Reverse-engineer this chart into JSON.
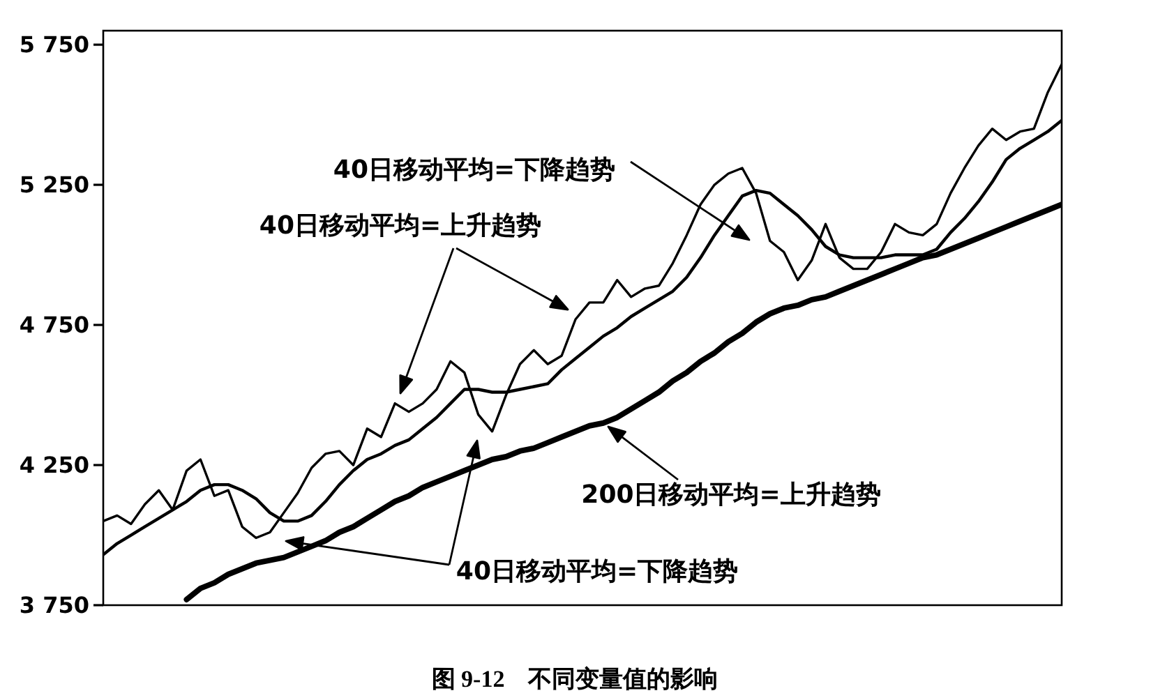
{
  "chart_data": {
    "type": "line",
    "annotations": [
      "40日移动平均=下降趋势",
      "40日移动平均=上升趋势",
      "200日移动平均=上升趋势",
      "40日移动平均=下降趋势",
      "图 9-12　不同变量值的影响"
    ],
    "categories": [
      null,
      null,
      null,
      null,
      null,
      null,
      null,
      null,
      null,
      null,
      null,
      null,
      null,
      null,
      null,
      null,
      null,
      null,
      null,
      null,
      null,
      null,
      null,
      null,
      null,
      null,
      null,
      null,
      null,
      null,
      null,
      null,
      null,
      null,
      null,
      null,
      null,
      null,
      null,
      null,
      null,
      null,
      null,
      null,
      null,
      null,
      null,
      null,
      null,
      null,
      null,
      null,
      null,
      null,
      null,
      null,
      null,
      null,
      null,
      null,
      null,
      null,
      null,
      null,
      null,
      null,
      null,
      null,
      null,
      null
    ],
    "series": [
      {
        "color": "#000000",
        "values": [
          4050,
          4070,
          4040,
          4110,
          4160,
          4090,
          4230,
          4270,
          4140,
          4160,
          4030,
          3990,
          4010,
          4080,
          4150,
          4240,
          4290,
          4300,
          4250,
          4380,
          4350,
          4470,
          4440,
          4470,
          4520,
          4620,
          4580,
          4430,
          4370,
          4500,
          4610,
          4660,
          4610,
          4640,
          4770,
          4830,
          4830,
          4910,
          4850,
          4880,
          4890,
          4970,
          5070,
          5180,
          5250,
          5290,
          5310,
          5220,
          5050,
          5010,
          4910,
          4980,
          5110,
          4990,
          4950,
          4950,
          5010,
          5110,
          5080,
          5070,
          5110,
          5220,
          5310,
          5390,
          5450,
          5410,
          5440,
          5450,
          5580,
          5680
        ]
      },
      {
        "color": "#000000",
        "values": [
          3930,
          3970,
          4000,
          4030,
          4060,
          4090,
          4120,
          4160,
          4180,
          4180,
          4160,
          4130,
          4080,
          4050,
          4050,
          4070,
          4120,
          4180,
          4230,
          4270,
          4290,
          4320,
          4340,
          4380,
          4420,
          4470,
          4520,
          4520,
          4510,
          4510,
          4520,
          4530,
          4540,
          4590,
          4630,
          4670,
          4710,
          4740,
          4780,
          4810,
          4840,
          4870,
          4920,
          4990,
          5070,
          5140,
          5210,
          5230,
          5220,
          5180,
          5140,
          5090,
          5030,
          5000,
          4990,
          4990,
          4990,
          5000,
          5000,
          5000,
          5020,
          5080,
          5130,
          5190,
          5260,
          5340,
          5380,
          5410,
          5440,
          5480
        ]
      },
      {
        "color": "#000000",
        "values": [
          null,
          null,
          null,
          null,
          null,
          null,
          3770,
          3810,
          3830,
          3860,
          3880,
          3900,
          3910,
          3920,
          3940,
          3960,
          3980,
          4010,
          4030,
          4060,
          4090,
          4120,
          4140,
          4170,
          4190,
          4210,
          4230,
          4250,
          4270,
          4280,
          4300,
          4310,
          4330,
          4350,
          4370,
          4390,
          4400,
          4420,
          4450,
          4480,
          4510,
          4550,
          4580,
          4620,
          4650,
          4690,
          4720,
          4760,
          4790,
          4810,
          4820,
          4840,
          4850,
          4870,
          4890,
          4910,
          4930,
          4950,
          4970,
          4990,
          5000,
          5020,
          5040,
          5060,
          5080,
          5100,
          5120,
          5140,
          5160,
          5180
        ]
      }
    ],
    "ylim": [
      3750,
      5800
    ],
    "yticks": [
      {
        "value": 3750,
        "label": "3 750"
      },
      {
        "value": 4250,
        "label": "4 250"
      },
      {
        "value": 4750,
        "label": "4 750"
      },
      {
        "value": 5250,
        "label": "5 250"
      },
      {
        "value": 5750,
        "label": "5 750"
      }
    ],
    "tick_labels": "y"
  }
}
